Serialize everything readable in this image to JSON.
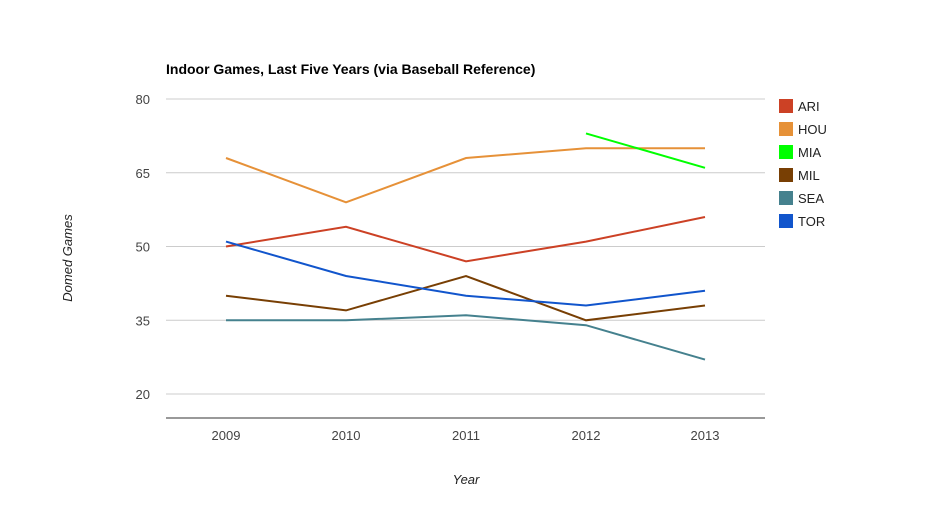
{
  "chart_data": {
    "type": "line",
    "title": "Indoor Games, Last Five Years (via Baseball Reference)",
    "xlabel": "Year",
    "ylabel": "Domed Games",
    "categories": [
      "2009",
      "2010",
      "2011",
      "2012",
      "2013"
    ],
    "ylim": [
      15,
      80
    ],
    "yticks": [
      20,
      35,
      50,
      65,
      80
    ],
    "grid": true,
    "legend": "right",
    "series": [
      {
        "name": "ARI",
        "color": "#cc4125",
        "values": [
          50,
          54,
          47,
          51,
          56
        ]
      },
      {
        "name": "HOU",
        "color": "#e69138",
        "values": [
          68,
          59,
          68,
          70,
          70
        ]
      },
      {
        "name": "MIA",
        "color": "#00ff00",
        "values": [
          null,
          null,
          null,
          73,
          66
        ]
      },
      {
        "name": "MIL",
        "color": "#783f04",
        "values": [
          40,
          37,
          44,
          35,
          38
        ]
      },
      {
        "name": "SEA",
        "color": "#45818e",
        "values": [
          35,
          35,
          36,
          34,
          27
        ]
      },
      {
        "name": "TOR",
        "color": "#1155cc",
        "values": [
          51,
          44,
          40,
          38,
          41
        ]
      }
    ]
  }
}
